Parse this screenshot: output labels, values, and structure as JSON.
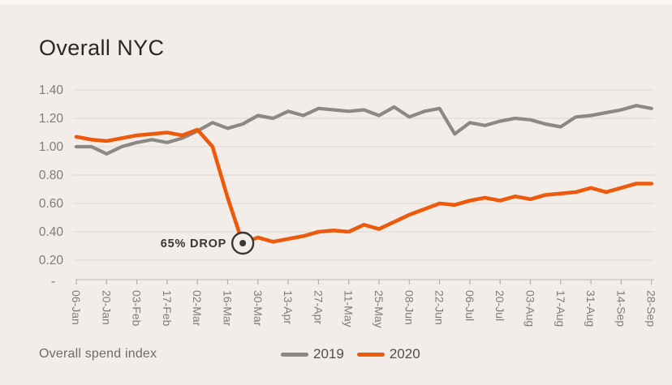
{
  "page": {
    "title": "Overall NYC",
    "footer_label": "Overall spend index"
  },
  "colors": {
    "background": "#f2ede9",
    "gridline": "#dcd7d2",
    "axis_line": "#c7c3be",
    "tick": "#b3afaa",
    "axis_text": "#7e7c77",
    "annotation": "#3a3733",
    "series_2019": "#8b8984",
    "series_2020": "#ee5a0b"
  },
  "legend": {
    "items": [
      {
        "label": "2019",
        "color": "#8b8984"
      },
      {
        "label": "2020",
        "color": "#ee5a0b"
      }
    ]
  },
  "chart_data": {
    "type": "line",
    "title": "Overall NYC",
    "xlabel": "",
    "ylabel": "",
    "ylim": [
      0,
      1.4
    ],
    "yticks": [
      0.2,
      0.4,
      0.6,
      0.8,
      1.0,
      1.2,
      1.4
    ],
    "ytick_labels": [
      "0.20",
      "0.40",
      "0.60",
      "0.80",
      "1.00",
      "1.20",
      "1.40"
    ],
    "zero_tick_label": "-",
    "grid": "horizontal-only",
    "legend_position": "bottom",
    "tick_every": 2,
    "categories": [
      "06-Jan",
      "13-Jan",
      "20-Jan",
      "27-Jan",
      "03-Feb",
      "10-Feb",
      "17-Feb",
      "24-Feb",
      "02-Mar",
      "09-Mar",
      "16-Mar",
      "23-Mar",
      "30-Mar",
      "06-Apr",
      "13-Apr",
      "20-Apr",
      "27-Apr",
      "04-May",
      "11-May",
      "18-May",
      "25-May",
      "01-Jun",
      "08-Jun",
      "15-Jun",
      "22-Jun",
      "29-Jun",
      "06-Jul",
      "13-Jul",
      "20-Jul",
      "27-Jul",
      "03-Aug",
      "10-Aug",
      "17-Aug",
      "24-Aug",
      "31-Aug",
      "07-Sep",
      "14-Sep",
      "21-Sep",
      "28-Sep"
    ],
    "shown_tick_labels": [
      "06-Jan",
      "20-Jan",
      "03-Feb",
      "17-Feb",
      "02-Mar",
      "16-Mar",
      "30-Mar",
      "13-Apr",
      "27-Apr",
      "11-May",
      "25-May",
      "08-Jun",
      "22-Jun",
      "06-Jul",
      "20-Jul",
      "03-Aug",
      "17-Aug",
      "31-Aug",
      "14-Sep",
      "28-Sep"
    ],
    "series": [
      {
        "name": "2019",
        "color": "#8b8984",
        "values": [
          1.0,
          1.0,
          0.95,
          1.0,
          1.03,
          1.05,
          1.03,
          1.06,
          1.11,
          1.17,
          1.13,
          1.16,
          1.22,
          1.2,
          1.25,
          1.22,
          1.27,
          1.26,
          1.25,
          1.26,
          1.22,
          1.28,
          1.21,
          1.25,
          1.27,
          1.09,
          1.17,
          1.15,
          1.18,
          1.2,
          1.19,
          1.16,
          1.14,
          1.21,
          1.22,
          1.24,
          1.26,
          1.29,
          1.27
        ]
      },
      {
        "name": "2020",
        "color": "#ee5a0b",
        "values": [
          1.07,
          1.05,
          1.04,
          1.06,
          1.08,
          1.09,
          1.1,
          1.08,
          1.12,
          1.0,
          0.64,
          0.32,
          0.36,
          0.33,
          0.35,
          0.37,
          0.4,
          0.41,
          0.4,
          0.45,
          0.42,
          0.47,
          0.52,
          0.56,
          0.6,
          0.59,
          0.62,
          0.64,
          0.62,
          0.65,
          0.63,
          0.66,
          0.67,
          0.68,
          0.71,
          0.68,
          0.71,
          0.74,
          0.74
        ]
      }
    ],
    "annotation": {
      "text": "65% DROP",
      "series": "2020",
      "category": "23-Mar",
      "point_index": 11,
      "value": 0.32
    }
  }
}
